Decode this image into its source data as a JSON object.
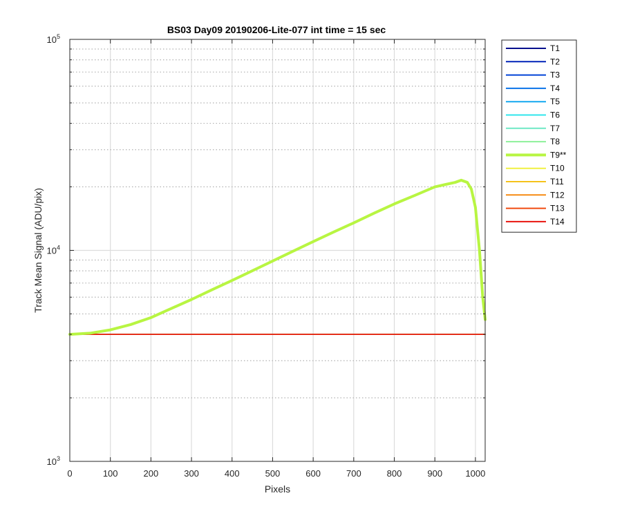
{
  "chart_data": {
    "type": "line",
    "title": "BS03 Day09 20190206-Lite-077 int time = 15 sec",
    "xlabel": "Pixels",
    "ylabel": "Track Mean Signal (ADU/pix)",
    "xlim": [
      0,
      1024
    ],
    "ylim": [
      1000,
      100000
    ],
    "yscale": "log",
    "grid": true,
    "legend_position": "right-outside",
    "x_ticks": [
      0,
      100,
      200,
      300,
      400,
      500,
      600,
      700,
      800,
      900,
      1000
    ],
    "x_tick_labels": [
      "0",
      "100",
      "200",
      "300",
      "400",
      "500",
      "600",
      "700",
      "800",
      "900",
      "1000"
    ],
    "y_ticks": [
      1000,
      10000,
      100000
    ],
    "y_tick_labels": [
      {
        "base": "10",
        "exp": "3"
      },
      {
        "base": "10",
        "exp": "4"
      },
      {
        "base": "10",
        "exp": "5"
      }
    ],
    "series": [
      {
        "name": "T1",
        "color": "#000d8c",
        "emphasis": false,
        "x": [
          0,
          1024
        ],
        "y": [
          4000,
          4000
        ]
      },
      {
        "name": "T2",
        "color": "#0022b8",
        "emphasis": false,
        "x": [
          0,
          1024
        ],
        "y": [
          4000,
          4000
        ]
      },
      {
        "name": "T3",
        "color": "#0042d6",
        "emphasis": false,
        "x": [
          0,
          1024
        ],
        "y": [
          4000,
          4000
        ]
      },
      {
        "name": "T4",
        "color": "#0a73e8",
        "emphasis": false,
        "x": [
          0,
          1024
        ],
        "y": [
          4000,
          4000
        ]
      },
      {
        "name": "T5",
        "color": "#12a8f0",
        "emphasis": false,
        "x": [
          0,
          1024
        ],
        "y": [
          4000,
          4000
        ]
      },
      {
        "name": "T6",
        "color": "#2ee6ec",
        "emphasis": false,
        "x": [
          0,
          1024
        ],
        "y": [
          4000,
          4000
        ]
      },
      {
        "name": "T7",
        "color": "#6de8c4",
        "emphasis": false,
        "x": [
          0,
          1024
        ],
        "y": [
          4000,
          4000
        ]
      },
      {
        "name": "T8",
        "color": "#8df09a",
        "emphasis": false,
        "x": [
          0,
          1024
        ],
        "y": [
          4000,
          4000
        ]
      },
      {
        "name": "T9**",
        "color": "#b8f542",
        "emphasis": true,
        "x": [
          0,
          50,
          100,
          150,
          200,
          250,
          300,
          350,
          400,
          450,
          500,
          550,
          600,
          650,
          700,
          750,
          800,
          850,
          900,
          925,
          950,
          965,
          980,
          990,
          1000,
          1010,
          1018,
          1024
        ],
        "y": [
          4000,
          4050,
          4200,
          4450,
          4800,
          5300,
          5850,
          6500,
          7200,
          8000,
          8900,
          9900,
          11000,
          12200,
          13500,
          15000,
          16600,
          18200,
          20000,
          20500,
          21000,
          21500,
          21000,
          19500,
          16000,
          10000,
          6000,
          4700
        ]
      },
      {
        "name": "T10",
        "color": "#f0f040",
        "emphasis": false,
        "x": [
          0,
          1024
        ],
        "y": [
          4000,
          4000
        ]
      },
      {
        "name": "T11",
        "color": "#f5c21a",
        "emphasis": false,
        "x": [
          0,
          1024
        ],
        "y": [
          4000,
          4000
        ]
      },
      {
        "name": "T12",
        "color": "#f58a12",
        "emphasis": false,
        "x": [
          0,
          1024
        ],
        "y": [
          4000,
          4000
        ]
      },
      {
        "name": "T13",
        "color": "#f04a10",
        "emphasis": false,
        "x": [
          0,
          1024
        ],
        "y": [
          4000,
          4000
        ]
      },
      {
        "name": "T14",
        "color": "#e8120c",
        "emphasis": false,
        "x": [
          0,
          1024
        ],
        "y": [
          4000,
          4000
        ]
      }
    ]
  }
}
